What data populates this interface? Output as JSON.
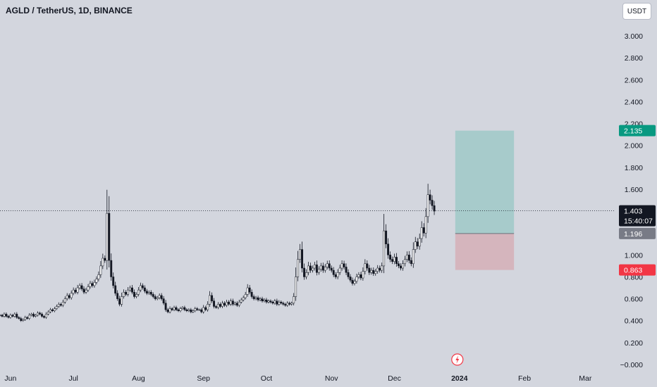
{
  "symbol_title": "AGLD / TetherUS, 1D, BINANCE",
  "unit_button": "USDT",
  "colors": {
    "candle": "#131722",
    "profit_zone": "#a7cbcb",
    "loss_zone": "#d5b5bd",
    "target_badge": "#089981",
    "stop_badge": "#f23645",
    "entry_badge": "#787b86",
    "last_badge": "#131722"
  },
  "chart_data": {
    "type": "candlestick",
    "title": "AGLD / TetherUS, 1D, BINANCE",
    "ylim": [
      -0.05,
      3.1
    ],
    "y_ticks": [
      "3.000",
      "2.800",
      "2.600",
      "2.400",
      "2.200",
      "2.000",
      "1.800",
      "1.600",
      "1.400",
      "1.200",
      "1.000",
      "0.800",
      "0.600",
      "0.400",
      "0.200",
      "−0.000"
    ],
    "y_tick_values": [
      3.0,
      2.8,
      2.6,
      2.4,
      2.2,
      2.0,
      1.8,
      1.6,
      1.4,
      1.2,
      1.0,
      0.8,
      0.6,
      0.4,
      0.2,
      0.0
    ],
    "x_ticks": [
      {
        "label": "Jun",
        "date": "2023-06-01",
        "bold": false
      },
      {
        "label": "Jul",
        "date": "2023-07-01",
        "bold": false
      },
      {
        "label": "Aug",
        "date": "2023-08-01",
        "bold": false
      },
      {
        "label": "Sep",
        "date": "2023-09-01",
        "bold": false
      },
      {
        "label": "Oct",
        "date": "2023-10-01",
        "bold": false
      },
      {
        "label": "Nov",
        "date": "2023-11-01",
        "bold": false
      },
      {
        "label": "Dec",
        "date": "2023-12-01",
        "bold": false
      },
      {
        "label": "2024",
        "date": "2024-01-01",
        "bold": true
      },
      {
        "label": "Feb",
        "date": "2024-02-01",
        "bold": false
      },
      {
        "label": "Mar",
        "date": "2024-03-01",
        "bold": false
      }
    ],
    "date_range": [
      "2023-05-27",
      "2024-03-15"
    ],
    "series": [
      {
        "start_date": "2023-05-27",
        "close": [
          0.45,
          0.44,
          0.46,
          0.44,
          0.43,
          0.45,
          0.44,
          0.46,
          0.43,
          0.42,
          0.4,
          0.41,
          0.43,
          0.42,
          0.45,
          0.46,
          0.44,
          0.45,
          0.47,
          0.46,
          0.44,
          0.43,
          0.46,
          0.48,
          0.5,
          0.49,
          0.51,
          0.53,
          0.55,
          0.54,
          0.57,
          0.6,
          0.63,
          0.61,
          0.65,
          0.68,
          0.66,
          0.7,
          0.72,
          0.69,
          0.66,
          0.68,
          0.71,
          0.74,
          0.72,
          0.75,
          0.78,
          0.82,
          0.9,
          0.97,
          0.95,
          1.38,
          0.95,
          0.8,
          0.72,
          0.65,
          0.6,
          0.55,
          0.62,
          0.66,
          0.64,
          0.68,
          0.7,
          0.66,
          0.62,
          0.64,
          0.68,
          0.72,
          0.7,
          0.67,
          0.65,
          0.66,
          0.64,
          0.62,
          0.6,
          0.61,
          0.63,
          0.6,
          0.56,
          0.5,
          0.48,
          0.51,
          0.5,
          0.52,
          0.5,
          0.49,
          0.51,
          0.52,
          0.5,
          0.49,
          0.5,
          0.48,
          0.49,
          0.51,
          0.5,
          0.5,
          0.48,
          0.52,
          0.5,
          0.55,
          0.63,
          0.58,
          0.53,
          0.52,
          0.55,
          0.53,
          0.56,
          0.54,
          0.57,
          0.55,
          0.58,
          0.55,
          0.56,
          0.54,
          0.57,
          0.59,
          0.61,
          0.64,
          0.7,
          0.66,
          0.62,
          0.6,
          0.61,
          0.59,
          0.6,
          0.58,
          0.59,
          0.57,
          0.58,
          0.57,
          0.56,
          0.58,
          0.55,
          0.57,
          0.56,
          0.55,
          0.54,
          0.56,
          0.55,
          0.56,
          0.62,
          0.8,
          0.96,
          1.05,
          0.88,
          0.8,
          0.84,
          0.9,
          0.86,
          0.88,
          0.91,
          0.84,
          0.87,
          0.9,
          0.86,
          0.89,
          0.92,
          0.88,
          0.86,
          0.82,
          0.8,
          0.84,
          0.88,
          0.92,
          0.89,
          0.84,
          0.8,
          0.77,
          0.74,
          0.76,
          0.8,
          0.82,
          0.79,
          0.85,
          0.92,
          0.88,
          0.84,
          0.86,
          0.83,
          0.85,
          0.88,
          0.86,
          0.9,
          1.22,
          1.1,
          1.0,
          0.96,
          0.94,
          0.98,
          0.92,
          0.9,
          0.88,
          0.92,
          0.96,
          1.0,
          0.95,
          0.92,
          1.05,
          1.12,
          1.08,
          1.15,
          1.25,
          1.2,
          1.35,
          1.55,
          1.5,
          1.45,
          1.4
        ]
      }
    ],
    "position_tool": {
      "start_date": "2023-12-30",
      "end_date": "2024-01-27",
      "entry": 1.196,
      "target": 2.135,
      "stop": 0.863
    },
    "price_labels": {
      "target": "2.135",
      "entry": "1.196",
      "stop": "0.863",
      "last": "1.403",
      "countdown": "15:40:07"
    },
    "last_price": 1.403
  }
}
